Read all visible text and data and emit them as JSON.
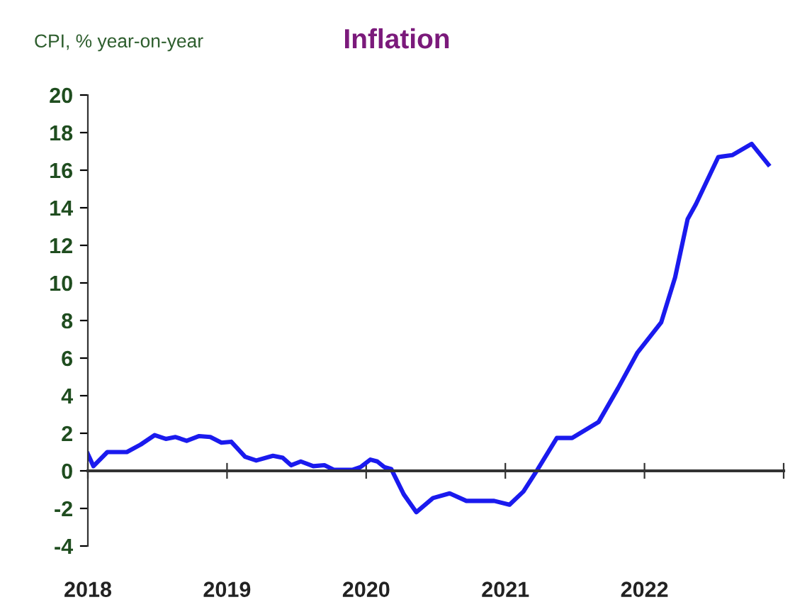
{
  "chart_data": {
    "type": "line",
    "title": "Inflation",
    "ylabel": "CPI, % year-on-year",
    "x": [
      2018.0,
      2018.04,
      2018.14,
      2018.28,
      2018.38,
      2018.48,
      2018.56,
      2018.63,
      2018.71,
      2018.8,
      2018.88,
      2018.96,
      2019.03,
      2019.13,
      2019.21,
      2019.33,
      2019.4,
      2019.46,
      2019.53,
      2019.62,
      2019.7,
      2019.77,
      2019.9,
      2019.96,
      2020.03,
      2020.08,
      2020.13,
      2020.18,
      2020.27,
      2020.36,
      2020.48,
      2020.6,
      2020.72,
      2020.92,
      2021.03,
      2021.13,
      2021.23,
      2021.37,
      2021.48,
      2021.67,
      2021.81,
      2021.95,
      2022.12,
      2022.22,
      2022.31,
      2022.37,
      2022.53,
      2022.63,
      2022.77,
      2022.89
    ],
    "series": [
      {
        "color": "#1a1aee",
        "values": [
          0.9,
          0.25,
          1.0,
          1.0,
          1.4,
          1.9,
          1.7,
          1.8,
          1.6,
          1.85,
          1.8,
          1.5,
          1.55,
          0.75,
          0.55,
          0.8,
          0.7,
          0.3,
          0.5,
          0.25,
          0.3,
          0.05,
          0.05,
          0.2,
          0.6,
          0.5,
          0.2,
          0.1,
          -1.25,
          -2.2,
          -1.45,
          -1.2,
          -1.6,
          -1.6,
          -1.8,
          -1.1,
          0.05,
          1.75,
          1.75,
          2.6,
          4.4,
          6.3,
          7.9,
          10.3,
          13.4,
          14.2,
          16.7,
          16.8,
          17.4,
          16.3
        ]
      }
    ],
    "xlim": [
      2018,
      2023
    ],
    "xticks": [
      2018,
      2019,
      2020,
      2021,
      2022,
      {
        "value": 2023,
        "label": null
      }
    ],
    "ylim": [
      -4,
      20
    ],
    "yticks": [
      -4,
      -2,
      0,
      2,
      4,
      6,
      8,
      10,
      12,
      14,
      16,
      18,
      20
    ],
    "legend": false,
    "marker": "none",
    "line_style": "solid"
  }
}
